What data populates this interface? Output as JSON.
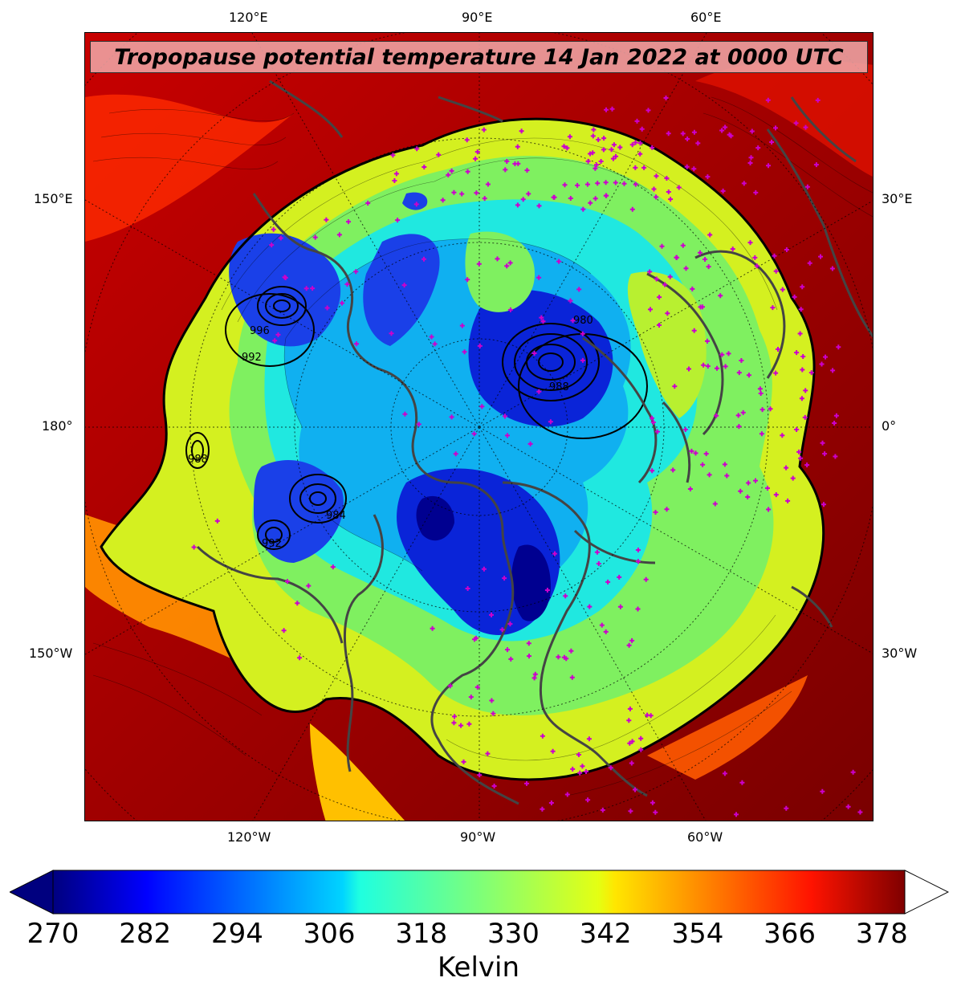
{
  "title": "Tropopause potential temperature 14 Jan 2022 at 0000 UTC",
  "longitude_labels": {
    "top": [
      "120°E",
      "90°E",
      "60°E"
    ],
    "bottom": [
      "120°W",
      "90°W",
      "60°W"
    ],
    "left": [
      "150°E",
      "180°",
      "150°W"
    ],
    "right": [
      "30°E",
      "0°",
      "30°W"
    ]
  },
  "pressure_contour_labels": [
    "996",
    "992",
    "980",
    "988",
    "988",
    "984",
    "992"
  ],
  "colorbar": {
    "label": "Kelvin",
    "ticks": [
      "270",
      "282",
      "294",
      "306",
      "318",
      "330",
      "342",
      "354",
      "366",
      "378"
    ],
    "min": 270,
    "max": 381,
    "extend": "both",
    "colormap": "jet"
  },
  "colors": {
    "warm_background": "#b00000",
    "cold_core": "#0a24d8",
    "station_marker": "#cc00cc",
    "coastline": "#444444"
  }
}
